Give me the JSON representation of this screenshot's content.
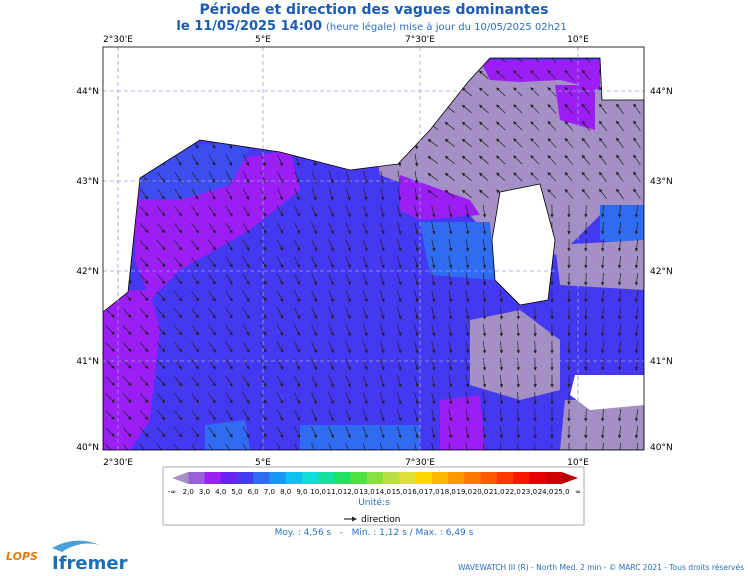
{
  "header": {
    "title": "Période et direction des vagues dominantes",
    "date": "le 11/05/2025 14:00",
    "note": "(heure légale) mise à jour du 10/05/2025 02h21"
  },
  "map": {
    "longitudes": [
      "2°30'E",
      "5°E",
      "7°30'E",
      "10°E"
    ],
    "latitudes": [
      "44°N",
      "43°N",
      "42°N",
      "41°N",
      "40°N"
    ]
  },
  "colorbar": {
    "labels": [
      "-∞",
      "2,0",
      "3,0",
      "4,0",
      "5,0",
      "6,0",
      "7,0",
      "8,0",
      "9,0",
      "10,0",
      "11,0",
      "12,0",
      "13,0",
      "14,0",
      "15,0",
      "16,0",
      "17,0",
      "18,0",
      "19,0",
      "20,0",
      "21,0",
      "22,0",
      "23,0",
      "24,0",
      "25,0",
      "∞"
    ],
    "colors": [
      "#a590c6",
      "#9a60d8",
      "#9b1ef5",
      "#6a22f2",
      "#4438f0",
      "#2f6cf2",
      "#1a96f5",
      "#10c0f0",
      "#10dcd8",
      "#14e0a0",
      "#20e060",
      "#50e040",
      "#88e040",
      "#b8e040",
      "#e0e038",
      "#ffd800",
      "#ffb800",
      "#ff9800",
      "#ff7800",
      "#ff5800",
      "#ff3800",
      "#f81800",
      "#e80000",
      "#d00000",
      "#b80000"
    ],
    "unit": "Unité:s"
  },
  "legend": {
    "arrow": "direction"
  },
  "stats": "Moy. : 4,56 s   -   Min. : 1,12 s / Max. : 6,49 s",
  "footer": {
    "credit": "WAVEWATCH III (R) - North Med. 2 min - © MARC 2021 - Tous droits réservés",
    "logo1": "LOPS",
    "logo2": "Ifremer"
  }
}
